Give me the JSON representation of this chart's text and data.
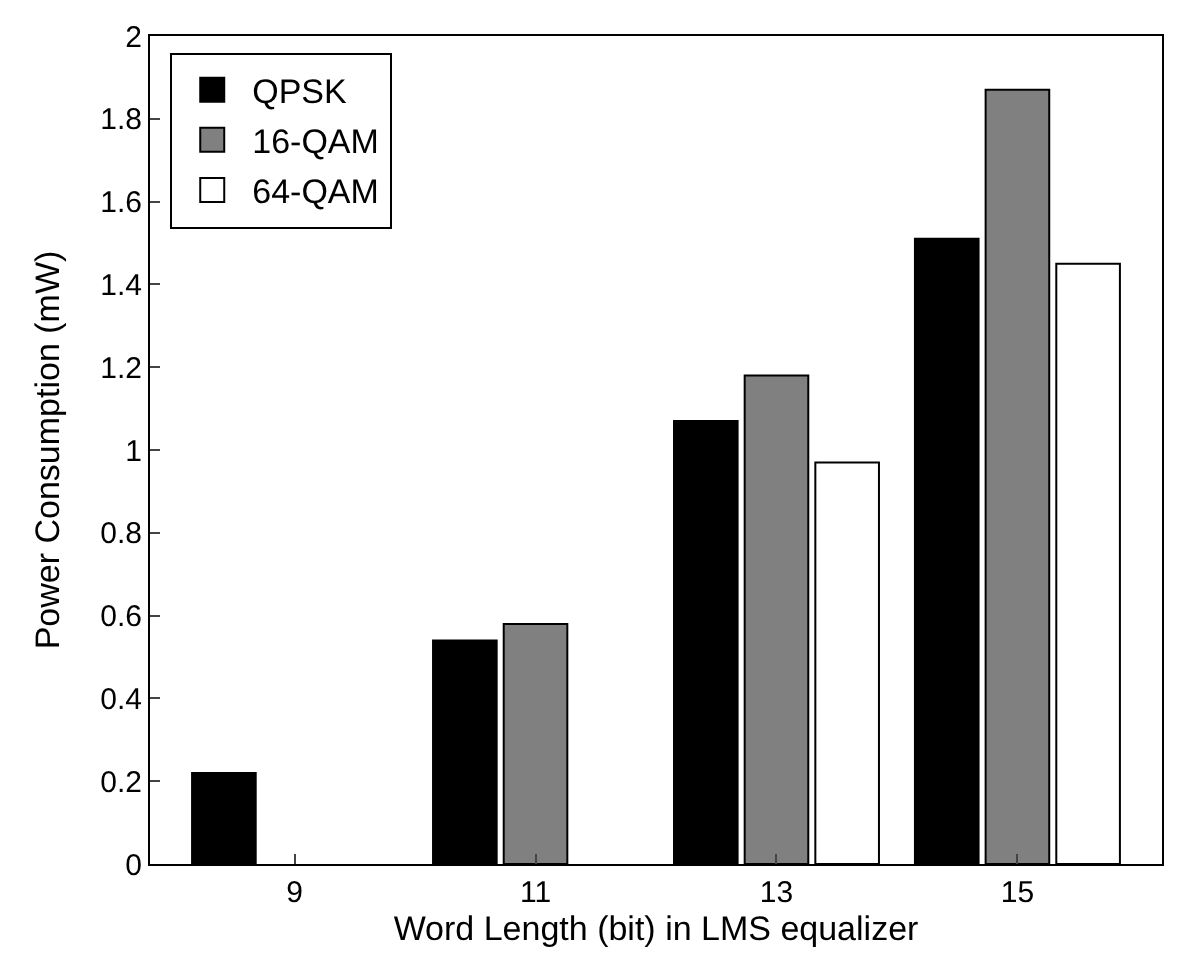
{
  "chart_data": {
    "type": "bar",
    "xlabel": "Word Length (bit) in LMS equalizer",
    "ylabel": "Power Consumption (mW)",
    "categories": [
      "9",
      "11",
      "13",
      "15"
    ],
    "series": [
      {
        "name": "QPSK",
        "color": "#000000",
        "values": [
          0.22,
          0.54,
          1.07,
          1.51
        ]
      },
      {
        "name": "16-QAM",
        "color": "#808080",
        "values": [
          null,
          0.58,
          1.18,
          1.87
        ]
      },
      {
        "name": "64-QAM",
        "color": "#ffffff",
        "values": [
          null,
          null,
          0.97,
          1.45
        ]
      }
    ],
    "ylim": [
      0,
      2
    ],
    "yticks": [
      0,
      0.2,
      0.4,
      0.6,
      0.8,
      1,
      1.2,
      1.4,
      1.6,
      1.8,
      2
    ],
    "grid": false,
    "legend": "top left"
  }
}
